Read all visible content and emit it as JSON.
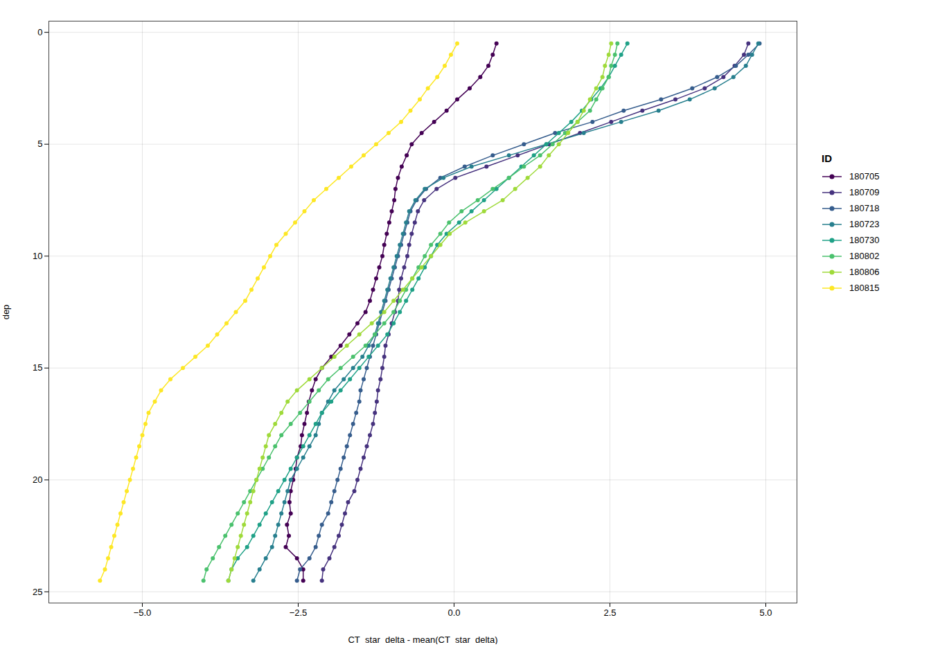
{
  "chart_data": {
    "type": "line",
    "xlabel": "CT_star_delta - mean(CT_star_delta)",
    "ylabel": "dep",
    "xlim": [
      -6.5,
      5.5
    ],
    "ylim": [
      25.5,
      -0.5
    ],
    "xticks": [
      {
        "value": -5.0,
        "label": "−5.0"
      },
      {
        "value": -2.5,
        "label": "−2.5"
      },
      {
        "value": 0.0,
        "label": "0.0"
      },
      {
        "value": 2.5,
        "label": "2.5"
      },
      {
        "value": 5.0,
        "label": "5.0"
      }
    ],
    "yticks": [
      0,
      5,
      10,
      15,
      20,
      25
    ],
    "grid": true,
    "legend": "right",
    "legend_title": "ID",
    "marker": "circle",
    "line_style": "solid",
    "series": [
      {
        "name": "180705",
        "color": "#440154",
        "values": [
          0.5,
          1.0,
          1.5,
          2.0,
          2.5,
          3.0,
          3.5,
          4.0,
          4.5,
          5.0,
          5.5,
          6.0,
          6.5,
          7.0,
          7.5,
          8.0,
          8.5,
          9.0,
          9.5,
          10.0,
          10.5,
          11.0,
          11.5,
          12.0,
          12.5,
          13.0,
          13.5,
          14.0,
          14.5,
          15.0,
          15.5,
          16.0,
          16.5,
          17.0,
          17.5,
          18.0,
          18.5,
          19.0,
          19.5,
          20.0,
          20.5,
          21.0,
          21.5,
          22.0,
          22.5,
          23.0,
          23.5,
          24.0,
          24.5
        ],
        "x": [
          0.68,
          0.62,
          0.55,
          0.42,
          0.25,
          0.05,
          -0.12,
          -0.32,
          -0.52,
          -0.68,
          -0.76,
          -0.84,
          -0.9,
          -0.94,
          -0.96,
          -1.0,
          -1.04,
          -1.08,
          -1.12,
          -1.15,
          -1.2,
          -1.25,
          -1.3,
          -1.35,
          -1.42,
          -1.55,
          -1.68,
          -1.82,
          -1.97,
          -2.12,
          -2.22,
          -2.28,
          -2.33,
          -2.36,
          -2.4,
          -2.44,
          -2.46,
          -2.52,
          -2.54,
          -2.58,
          -2.62,
          -2.64,
          -2.62,
          -2.68,
          -2.65,
          -2.7,
          -2.52,
          -2.42,
          -2.42
        ]
      },
      {
        "name": "180709",
        "color": "#46327e",
        "values": [
          0.5,
          1.0,
          1.5,
          2.0,
          2.5,
          3.0,
          3.5,
          4.0,
          4.5,
          5.0,
          5.5,
          6.0,
          6.5,
          7.0,
          7.5,
          8.0,
          8.5,
          9.0,
          9.5,
          10.0,
          10.5,
          11.0,
          11.5,
          12.0,
          12.5,
          13.0,
          13.5,
          14.0,
          14.5,
          15.0,
          15.5,
          16.0,
          16.5,
          17.0,
          17.5,
          18.0,
          18.5,
          19.0,
          19.5,
          20.0,
          20.5,
          21.0,
          21.5,
          22.0,
          22.5,
          23.0,
          23.5,
          24.0,
          24.5
        ],
        "x": [
          4.72,
          4.65,
          4.5,
          4.32,
          4.02,
          3.55,
          3.02,
          2.52,
          2.02,
          1.52,
          1.02,
          0.52,
          0.02,
          -0.28,
          -0.48,
          -0.58,
          -0.63,
          -0.68,
          -0.72,
          -0.75,
          -0.8,
          -0.85,
          -0.88,
          -0.9,
          -0.95,
          -1.0,
          -1.05,
          -1.1,
          -1.12,
          -1.15,
          -1.18,
          -1.22,
          -1.24,
          -1.27,
          -1.3,
          -1.35,
          -1.4,
          -1.45,
          -1.5,
          -1.55,
          -1.6,
          -1.7,
          -1.75,
          -1.8,
          -1.85,
          -1.92,
          -2.0,
          -2.1,
          -2.12
        ]
      },
      {
        "name": "180718",
        "color": "#365d8d",
        "values": [
          0.5,
          1.0,
          1.5,
          2.0,
          2.5,
          3.0,
          3.5,
          4.0,
          4.5,
          5.0,
          5.5,
          6.0,
          6.5,
          7.0,
          7.5,
          8.0,
          8.5,
          9.0,
          9.5,
          10.0,
          10.5,
          11.0,
          11.5,
          12.0,
          12.5,
          13.0,
          13.5,
          14.0,
          14.5,
          15.0,
          15.5,
          16.0,
          16.5,
          17.0,
          17.5,
          18.0,
          18.5,
          19.0,
          19.5,
          20.0,
          20.5,
          21.0,
          21.5,
          22.0,
          22.5,
          23.0,
          23.5,
          24.0,
          24.5
        ],
        "x": [
          4.9,
          4.72,
          4.52,
          4.22,
          3.82,
          3.32,
          2.72,
          2.22,
          1.62,
          1.12,
          0.62,
          0.17,
          -0.22,
          -0.45,
          -0.6,
          -0.7,
          -0.75,
          -0.8,
          -0.85,
          -0.9,
          -0.95,
          -1.0,
          -1.05,
          -1.1,
          -1.15,
          -1.2,
          -1.25,
          -1.3,
          -1.35,
          -1.4,
          -1.45,
          -1.5,
          -1.52,
          -1.57,
          -1.62,
          -1.67,
          -1.72,
          -1.77,
          -1.82,
          -1.87,
          -1.92,
          -1.97,
          -2.02,
          -2.12,
          -2.17,
          -2.22,
          -2.32,
          -2.47,
          -2.52
        ]
      },
      {
        "name": "180723",
        "color": "#277f8e",
        "values": [
          0.5,
          1.0,
          1.5,
          2.0,
          2.5,
          3.0,
          3.5,
          4.0,
          4.5,
          5.0,
          5.5,
          6.0,
          6.5,
          7.0,
          7.5,
          8.0,
          8.5,
          9.0,
          9.5,
          10.0,
          10.5,
          11.0,
          11.5,
          12.0,
          12.5,
          13.0,
          13.5,
          14.0,
          14.5,
          15.0,
          15.5,
          16.0,
          16.5,
          17.0,
          17.5,
          18.0,
          18.5,
          19.0,
          19.5,
          20.0,
          20.5,
          21.0,
          21.5,
          22.0,
          22.5,
          23.0,
          23.5,
          24.0,
          24.5
        ],
        "x": [
          4.88,
          4.78,
          4.68,
          4.48,
          4.18,
          3.78,
          3.28,
          2.68,
          2.08,
          1.48,
          0.88,
          0.28,
          -0.17,
          -0.47,
          -0.62,
          -0.72,
          -0.77,
          -0.82,
          -0.87,
          -0.92,
          -0.97,
          -1.02,
          -1.07,
          -1.12,
          -1.17,
          -1.22,
          -1.27,
          -1.37,
          -1.47,
          -1.62,
          -1.77,
          -1.92,
          -2.02,
          -2.12,
          -2.17,
          -2.22,
          -2.32,
          -2.42,
          -2.52,
          -2.62,
          -2.67,
          -2.72,
          -2.77,
          -2.82,
          -2.87,
          -2.92,
          -3.02,
          -3.12,
          -3.22
        ]
      },
      {
        "name": "180730",
        "color": "#1fa187",
        "values": [
          0.5,
          1.0,
          1.5,
          2.0,
          2.5,
          3.0,
          3.5,
          4.0,
          4.5,
          5.0,
          5.5,
          6.0,
          6.5,
          7.0,
          7.5,
          8.0,
          8.5,
          9.0,
          9.5,
          10.0,
          10.5,
          11.0,
          11.5,
          12.0,
          12.5,
          13.0,
          13.5,
          14.0,
          14.5,
          15.0,
          15.5,
          16.0,
          16.5,
          17.0,
          17.5,
          18.0,
          18.5,
          19.0,
          19.5,
          20.0,
          20.5,
          21.0,
          21.5,
          22.0,
          22.5,
          23.0,
          23.5,
          24.0,
          24.5
        ],
        "x": [
          2.78,
          2.68,
          2.58,
          2.48,
          2.35,
          2.2,
          2.05,
          1.88,
          1.68,
          1.48,
          1.28,
          1.08,
          0.88,
          0.68,
          0.48,
          0.28,
          0.08,
          -0.12,
          -0.27,
          -0.37,
          -0.47,
          -0.57,
          -0.67,
          -0.77,
          -0.87,
          -0.97,
          -1.07,
          -1.22,
          -1.37,
          -1.52,
          -1.67,
          -1.82,
          -1.97,
          -2.12,
          -2.22,
          -2.32,
          -2.42,
          -2.52,
          -2.62,
          -2.72,
          -2.82,
          -2.92,
          -3.02,
          -3.12,
          -3.22,
          -3.32,
          -3.47,
          -3.57,
          -3.62
        ]
      },
      {
        "name": "180802",
        "color": "#4ac16d",
        "values": [
          0.5,
          1.0,
          1.5,
          2.0,
          2.5,
          3.0,
          3.5,
          4.0,
          4.5,
          5.0,
          5.5,
          6.0,
          6.5,
          7.0,
          7.5,
          8.0,
          8.5,
          9.0,
          9.5,
          10.0,
          10.5,
          11.0,
          11.5,
          12.0,
          12.5,
          13.0,
          13.5,
          14.0,
          14.5,
          15.0,
          15.5,
          16.0,
          16.5,
          17.0,
          17.5,
          18.0,
          18.5,
          19.0,
          19.5,
          20.0,
          20.5,
          21.0,
          21.5,
          22.0,
          22.5,
          23.0,
          23.5,
          24.0,
          24.5
        ],
        "x": [
          2.62,
          2.58,
          2.52,
          2.48,
          2.38,
          2.28,
          2.18,
          1.98,
          1.78,
          1.58,
          1.38,
          1.12,
          0.88,
          0.62,
          0.38,
          0.12,
          -0.08,
          -0.22,
          -0.37,
          -0.47,
          -0.57,
          -0.67,
          -0.77,
          -0.87,
          -0.97,
          -1.12,
          -1.27,
          -1.42,
          -1.62,
          -1.82,
          -2.02,
          -2.17,
          -2.32,
          -2.47,
          -2.62,
          -2.77,
          -2.87,
          -2.97,
          -3.07,
          -3.17,
          -3.27,
          -3.37,
          -3.47,
          -3.57,
          -3.67,
          -3.77,
          -3.87,
          -3.97,
          -4.02
        ]
      },
      {
        "name": "180806",
        "color": "#9fda3a",
        "values": [
          0.5,
          1.0,
          1.5,
          2.0,
          2.5,
          3.0,
          3.5,
          4.0,
          4.5,
          5.0,
          5.5,
          6.0,
          6.5,
          7.0,
          7.5,
          8.0,
          8.5,
          9.0,
          9.5,
          10.0,
          10.5,
          11.0,
          11.5,
          12.0,
          12.5,
          13.0,
          13.5,
          14.0,
          14.5,
          15.0,
          15.5,
          16.0,
          16.5,
          17.0,
          17.5,
          18.0,
          18.5,
          19.0,
          19.5,
          20.0,
          20.5,
          21.0,
          21.5,
          22.0,
          22.5,
          23.0,
          23.5,
          24.0,
          24.5
        ],
        "x": [
          2.52,
          2.48,
          2.42,
          2.38,
          2.28,
          2.18,
          2.08,
          1.98,
          1.83,
          1.68,
          1.52,
          1.38,
          1.18,
          0.98,
          0.78,
          0.48,
          0.18,
          -0.07,
          -0.22,
          -0.37,
          -0.52,
          -0.67,
          -0.82,
          -0.97,
          -1.12,
          -1.32,
          -1.52,
          -1.72,
          -1.92,
          -2.12,
          -2.32,
          -2.52,
          -2.67,
          -2.77,
          -2.87,
          -2.97,
          -3.02,
          -3.07,
          -3.12,
          -3.17,
          -3.22,
          -3.27,
          -3.32,
          -3.37,
          -3.42,
          -3.47,
          -3.52,
          -3.57,
          -3.62
        ]
      },
      {
        "name": "180815",
        "color": "#fde725",
        "values": [
          0.5,
          1.0,
          1.5,
          2.0,
          2.5,
          3.0,
          3.5,
          4.0,
          4.5,
          5.0,
          5.5,
          6.0,
          6.5,
          7.0,
          7.5,
          8.0,
          8.5,
          9.0,
          9.5,
          10.0,
          10.5,
          11.0,
          11.5,
          12.0,
          12.5,
          13.0,
          13.5,
          14.0,
          14.5,
          15.0,
          15.5,
          16.0,
          16.5,
          17.0,
          17.5,
          18.0,
          18.5,
          19.0,
          19.5,
          20.0,
          20.5,
          21.0,
          21.5,
          22.0,
          22.5,
          23.0,
          23.5,
          24.0,
          24.5
        ],
        "x": [
          0.05,
          -0.05,
          -0.15,
          -0.27,
          -0.42,
          -0.55,
          -0.7,
          -0.85,
          -1.05,
          -1.25,
          -1.45,
          -1.65,
          -1.85,
          -2.05,
          -2.25,
          -2.4,
          -2.55,
          -2.7,
          -2.85,
          -2.95,
          -3.05,
          -3.15,
          -3.25,
          -3.35,
          -3.5,
          -3.65,
          -3.8,
          -3.95,
          -4.15,
          -4.35,
          -4.55,
          -4.7,
          -4.8,
          -4.9,
          -4.95,
          -5.0,
          -5.05,
          -5.1,
          -5.15,
          -5.2,
          -5.25,
          -5.3,
          -5.35,
          -5.4,
          -5.45,
          -5.5,
          -5.55,
          -5.6,
          -5.68
        ]
      }
    ]
  }
}
